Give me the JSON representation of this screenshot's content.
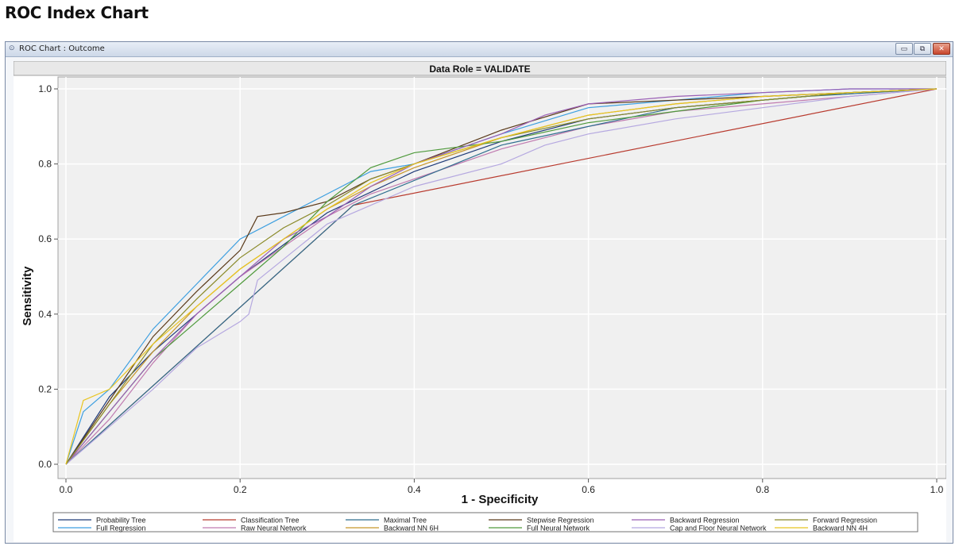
{
  "page_heading": "ROC Index Chart",
  "window": {
    "title": "ROC Chart : Outcome",
    "icon": "chart-icon",
    "buttons": [
      "minimize-icon",
      "restore-icon",
      "close-icon"
    ]
  },
  "colors": {
    "window_border": "#7a8aa6",
    "plot_background": "#f0f0f0",
    "gridline": "#ffffff"
  },
  "chart_data": {
    "type": "line",
    "title": "Data Role = VALIDATE",
    "xlabel": "1 - Specificity",
    "ylabel": "Sensitivity",
    "xlim": [
      0,
      1
    ],
    "ylim": [
      0,
      1
    ],
    "xticks": [
      "0.0",
      "0.2",
      "0.4",
      "0.6",
      "0.8",
      "1.0"
    ],
    "yticks": [
      "0.0",
      "0.2",
      "0.4",
      "0.6",
      "0.8",
      "1.0"
    ],
    "grid": true,
    "legend_position": "bottom",
    "series": [
      {
        "name": "Probability Tree",
        "color": "#1f3a78",
        "x": [
          0,
          0.05,
          0.1,
          0.2,
          0.3,
          0.4,
          0.5,
          0.6,
          0.7,
          0.8,
          0.9,
          1.0
        ],
        "y": [
          0,
          0.18,
          0.3,
          0.5,
          0.67,
          0.78,
          0.86,
          0.92,
          0.95,
          0.97,
          0.99,
          1.0
        ]
      },
      {
        "name": "Full Regression",
        "color": "#3d9fe0",
        "x": [
          0,
          0.02,
          0.05,
          0.1,
          0.15,
          0.2,
          0.25,
          0.3,
          0.35,
          0.4,
          0.5,
          0.6,
          0.7,
          0.8,
          0.9,
          1.0
        ],
        "y": [
          0,
          0.14,
          0.2,
          0.36,
          0.48,
          0.6,
          0.66,
          0.72,
          0.78,
          0.8,
          0.88,
          0.95,
          0.97,
          0.99,
          1.0,
          1.0
        ]
      },
      {
        "name": "Classification Tree",
        "color": "#b83a2e",
        "x": [
          0,
          0.33,
          1.0
        ],
        "y": [
          0,
          0.69,
          1.0
        ]
      },
      {
        "name": "Raw Neural Network",
        "color": "#c07bb0",
        "x": [
          0,
          0.05,
          0.1,
          0.15,
          0.2,
          0.25,
          0.3,
          0.35,
          0.4,
          0.5,
          0.6,
          0.7,
          0.8,
          0.9,
          1.0
        ],
        "y": [
          0,
          0.12,
          0.27,
          0.4,
          0.5,
          0.58,
          0.66,
          0.72,
          0.76,
          0.84,
          0.9,
          0.94,
          0.96,
          0.98,
          1.0
        ]
      },
      {
        "name": "Maximal Tree",
        "color": "#2e6e8e",
        "x": [
          0,
          0.33,
          0.5,
          0.7,
          0.85,
          1.0
        ],
        "y": [
          0,
          0.69,
          0.85,
          0.95,
          0.98,
          1.0
        ]
      },
      {
        "name": "Backward NN 6H",
        "color": "#c8962a",
        "x": [
          0,
          0.05,
          0.1,
          0.15,
          0.2,
          0.25,
          0.3,
          0.35,
          0.4,
          0.5,
          0.6,
          0.7,
          0.8,
          0.9,
          1.0
        ],
        "y": [
          0,
          0.16,
          0.3,
          0.42,
          0.52,
          0.6,
          0.68,
          0.74,
          0.79,
          0.87,
          0.93,
          0.96,
          0.98,
          0.99,
          1.0
        ]
      },
      {
        "name": "Stepwise Regression",
        "color": "#5a3a1a",
        "x": [
          0,
          0.05,
          0.1,
          0.15,
          0.2,
          0.22,
          0.25,
          0.3,
          0.35,
          0.4,
          0.5,
          0.6,
          0.7,
          0.8,
          0.9,
          1.0
        ],
        "y": [
          0,
          0.17,
          0.34,
          0.46,
          0.57,
          0.66,
          0.67,
          0.7,
          0.76,
          0.8,
          0.89,
          0.96,
          0.97,
          0.98,
          0.99,
          1.0
        ]
      },
      {
        "name": "Full Neural Network",
        "color": "#4f9a3c",
        "x": [
          0,
          0.05,
          0.1,
          0.15,
          0.2,
          0.25,
          0.3,
          0.35,
          0.4,
          0.5,
          0.6,
          0.7,
          0.8,
          0.9,
          1.0
        ],
        "y": [
          0,
          0.14,
          0.28,
          0.38,
          0.48,
          0.58,
          0.7,
          0.79,
          0.83,
          0.86,
          0.91,
          0.94,
          0.97,
          0.99,
          1.0
        ]
      },
      {
        "name": "Backward Regression",
        "color": "#9a5fb5",
        "x": [
          0,
          0.05,
          0.1,
          0.15,
          0.2,
          0.25,
          0.3,
          0.35,
          0.4,
          0.5,
          0.55,
          0.6,
          0.7,
          0.8,
          0.9,
          1.0
        ],
        "y": [
          0,
          0.14,
          0.28,
          0.4,
          0.5,
          0.6,
          0.66,
          0.74,
          0.8,
          0.88,
          0.93,
          0.96,
          0.98,
          0.99,
          1.0,
          1.0
        ]
      },
      {
        "name": "Cap and Floor Neural Network",
        "color": "#b5a8e0",
        "x": [
          0,
          0.05,
          0.1,
          0.15,
          0.2,
          0.21,
          0.22,
          0.3,
          0.4,
          0.5,
          0.55,
          0.6,
          0.7,
          0.8,
          0.9,
          1.0
        ],
        "y": [
          0,
          0.1,
          0.2,
          0.31,
          0.38,
          0.4,
          0.49,
          0.64,
          0.74,
          0.8,
          0.85,
          0.88,
          0.92,
          0.95,
          0.98,
          1.0
        ]
      },
      {
        "name": "Forward Regression",
        "color": "#8a8a2a",
        "x": [
          0,
          0.05,
          0.1,
          0.15,
          0.2,
          0.25,
          0.3,
          0.35,
          0.4,
          0.5,
          0.6,
          0.7,
          0.8,
          0.9,
          1.0
        ],
        "y": [
          0,
          0.16,
          0.32,
          0.44,
          0.55,
          0.63,
          0.69,
          0.76,
          0.8,
          0.87,
          0.92,
          0.95,
          0.97,
          0.99,
          1.0
        ]
      },
      {
        "name": "Backward NN 4H",
        "color": "#e8c520",
        "x": [
          0,
          0.02,
          0.05,
          0.1,
          0.15,
          0.2,
          0.25,
          0.3,
          0.35,
          0.4,
          0.5,
          0.6,
          0.7,
          0.8,
          0.9,
          1.0
        ],
        "y": [
          0,
          0.17,
          0.2,
          0.32,
          0.42,
          0.52,
          0.6,
          0.68,
          0.75,
          0.8,
          0.87,
          0.93,
          0.96,
          0.98,
          0.99,
          1.0
        ]
      }
    ]
  }
}
